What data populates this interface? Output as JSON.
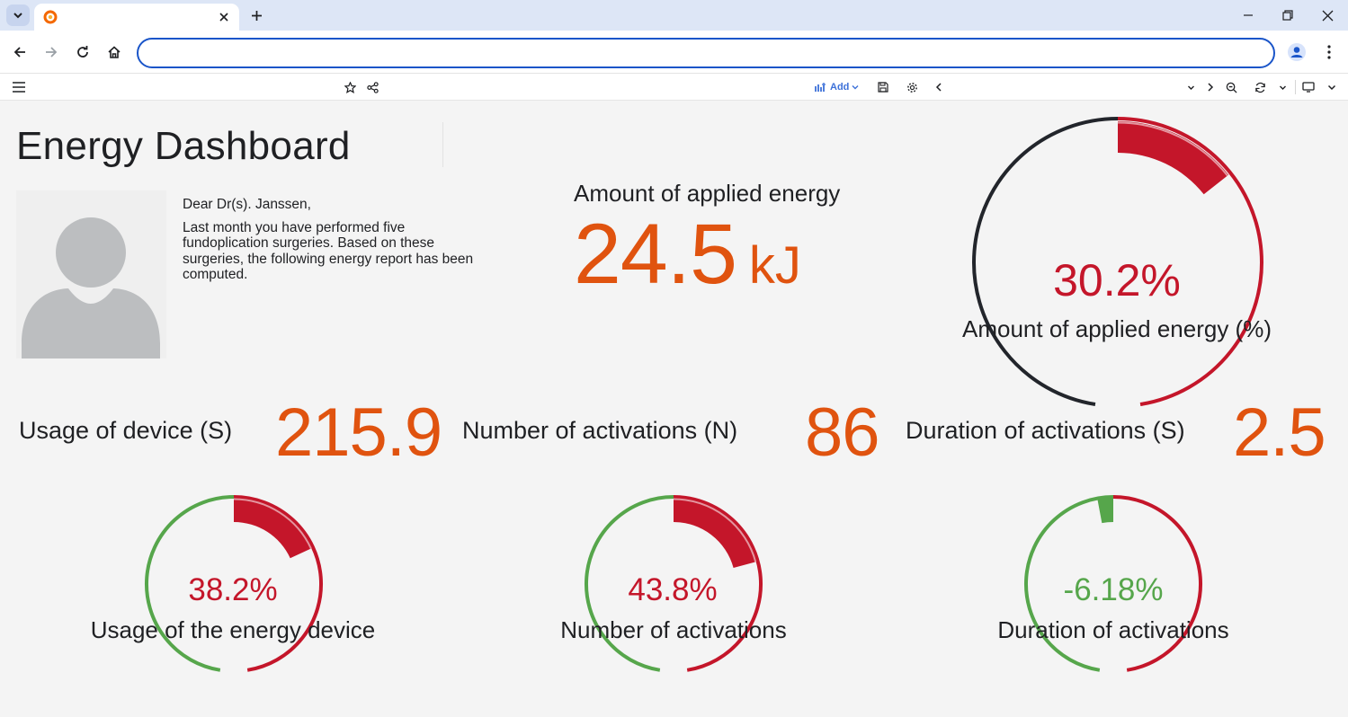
{
  "browser": {
    "tab_title": "",
    "address": "",
    "icons": [
      "chevron-down-icon",
      "grafana-favicon",
      "close-icon",
      "plus-icon",
      "minimize-icon",
      "restore-icon",
      "close-window-icon",
      "back-icon",
      "forward-icon",
      "reload-icon",
      "home-icon",
      "profile-icon",
      "more-icon"
    ]
  },
  "grafana_toolbar": {
    "add_label": "Add",
    "icons": [
      "menu-icon",
      "star-icon",
      "share-icon",
      "add-panel-icon",
      "save-icon",
      "settings-icon",
      "chevron-left-icon",
      "chevron-down-icon",
      "chevron-right-icon",
      "zoom-out-icon",
      "refresh-icon",
      "tv-icon"
    ]
  },
  "dashboard": {
    "title": "Energy Dashboard",
    "letter": {
      "greeting": "Dear Dr(s). Janssen,",
      "body": "Last month you have performed five fundoplication surgeries. Based on these surgeries, the following energy report has been computed."
    },
    "applied_energy": {
      "label": "Amount of applied energy",
      "value": "24.5",
      "unit": "kJ"
    },
    "main_gauge": {
      "value_text": "30.2%",
      "title": "Amount of applied energy (%)",
      "level": 30.2,
      "color": "#c4162a",
      "base_color": "#22252b"
    },
    "stats_row": [
      {
        "label": "Usage of device (S)",
        "value": "215.9"
      },
      {
        "label": "Number of activations (N)",
        "value": "86"
      },
      {
        "label": "Duration of activations (S)",
        "value": "2.5"
      }
    ],
    "small_gauges": [
      {
        "value_text": "38.2%",
        "title": "Usage of the energy device",
        "level": 38.2,
        "color": "#c4162a",
        "base_color": "#56a64b"
      },
      {
        "value_text": "43.8%",
        "title": "Number of activations",
        "level": 43.8,
        "color": "#c4162a",
        "base_color": "#56a64b"
      },
      {
        "value_text": "-6.18%",
        "title": "Duration of activations",
        "level": -6.18,
        "color": "#56a64b",
        "base_color": "#56a64b"
      }
    ],
    "colors": {
      "accent_orange": "#e0530f",
      "threshold_red": "#c4162a",
      "threshold_green": "#56a64b"
    }
  }
}
